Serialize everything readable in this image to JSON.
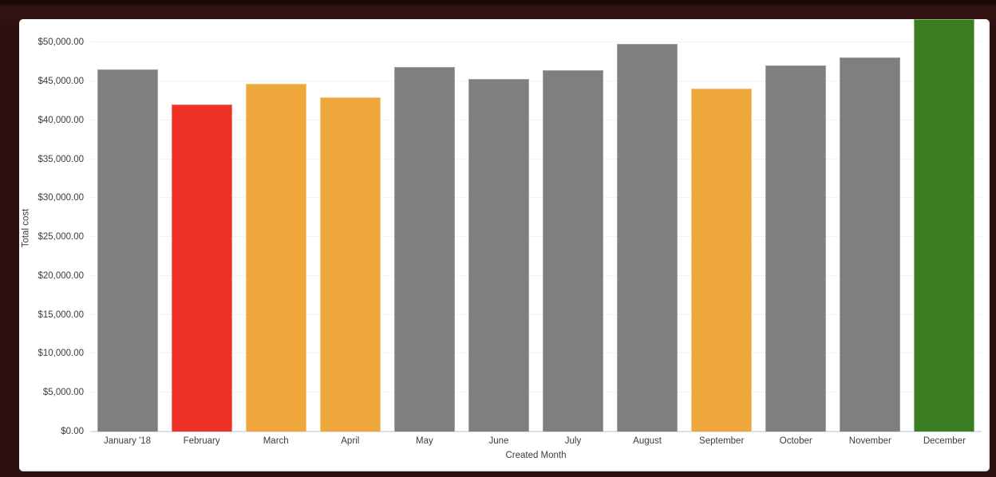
{
  "window": {
    "frame_color": "#2c0f0f",
    "panel_background": "#ffffff"
  },
  "chart_data": {
    "type": "bar",
    "title": "",
    "xlabel": "Created Month",
    "ylabel": "Total cost",
    "ylim": [
      0,
      53000
    ],
    "grid": true,
    "legend": false,
    "categories": [
      "January '18",
      "February",
      "March",
      "April",
      "May",
      "June",
      "July",
      "August",
      "September",
      "October",
      "November",
      "December"
    ],
    "values": [
      46500,
      42000,
      44700,
      43000,
      46800,
      45300,
      46400,
      49800,
      44100,
      47100,
      48100,
      53000
    ],
    "bar_color_keys": [
      "gray",
      "red",
      "orange",
      "orange",
      "gray",
      "gray",
      "gray",
      "gray",
      "orange",
      "gray",
      "gray",
      "green"
    ],
    "palette": {
      "gray": {
        "fill": "#7f7f7f",
        "edge": "#a3a3a3"
      },
      "red": {
        "fill": "#ee3124",
        "edge": "#f4786d"
      },
      "orange": {
        "fill": "#efa73c",
        "edge": "#f6c981"
      },
      "green": {
        "fill": "#3a7d22",
        "edge": "#8db076"
      }
    },
    "yticks": [
      {
        "value": 0,
        "label": "$0.00"
      },
      {
        "value": 5000,
        "label": "$5,000.00"
      },
      {
        "value": 10000,
        "label": "$10,000.00"
      },
      {
        "value": 15000,
        "label": "$15,000.00"
      },
      {
        "value": 20000,
        "label": "$20,000.00"
      },
      {
        "value": 25000,
        "label": "$25,000.00"
      },
      {
        "value": 30000,
        "label": "$30,000.00"
      },
      {
        "value": 35000,
        "label": "$35,000.00"
      },
      {
        "value": 40000,
        "label": "$40,000.00"
      },
      {
        "value": 45000,
        "label": "$45,000.00"
      },
      {
        "value": 50000,
        "label": "$50,000.00"
      }
    ],
    "colors": {
      "gridline": "#f3f2f4",
      "baseline": "#dce0ea",
      "text": "#3c3c3c"
    }
  }
}
